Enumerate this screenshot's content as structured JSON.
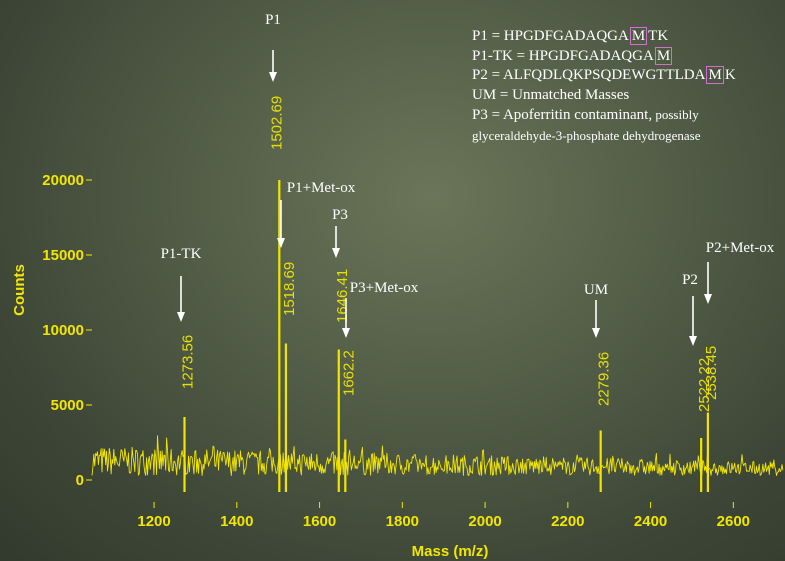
{
  "chart_data": {
    "type": "line",
    "xlabel": "Mass (m/z)",
    "ylabel": "Counts",
    "xlim": [
      1050,
      2720
    ],
    "ylim": [
      0,
      22000
    ],
    "xticks": [
      1200,
      1400,
      1600,
      1800,
      2000,
      2200,
      2400,
      2600
    ],
    "yticks": [
      0,
      5000,
      10000,
      15000,
      20000
    ],
    "baseline_level": 1500,
    "peaks": [
      {
        "x": 1273.56,
        "y": 4200,
        "value_label": "1273.56",
        "annotation": "P1-TK"
      },
      {
        "x": 1502.69,
        "y": 20000,
        "value_label": "1502.69",
        "annotation": "P1"
      },
      {
        "x": 1518.69,
        "y": 9100,
        "value_label": "1518.69",
        "annotation": "P1+Met-ox"
      },
      {
        "x": 1646.41,
        "y": 8700,
        "value_label": "1646.41",
        "annotation": "P3"
      },
      {
        "x": 1662.2,
        "y": 2700,
        "value_label": "1662.2",
        "annotation": "P3+Met-ox"
      },
      {
        "x": 2279.36,
        "y": 3300,
        "value_label": "2279.36",
        "annotation": "UM"
      },
      {
        "x": 2522.22,
        "y": 2800,
        "value_label": "2522.22",
        "annotation": "P2"
      },
      {
        "x": 2538.45,
        "y": 4500,
        "value_label": "2538.45",
        "annotation": "P2+Met-ox"
      }
    ],
    "colors": {
      "trace": "#f2e600",
      "annotation": "#ffffff",
      "highlight_box": "#d070d0"
    }
  },
  "legend": {
    "p1": {
      "pre": "P1 = HPGDFGADAQGA",
      "box": "M",
      "post": "TK"
    },
    "p1tk": {
      "pre": "P1-TK = HPGDFGADAQGA",
      "box": "M",
      "post": ""
    },
    "p2": {
      "pre": "P2 = ALFQDLQKPSQDEWGTTLDA",
      "box": "M",
      "post": "K"
    },
    "um": "UM = Unmatched Masses",
    "p3": {
      "main": "P3 = Apoferritin contaminant,",
      "small": " possibly"
    },
    "p3b": "glyceraldehyde-3-phosphate  dehydrogenase"
  }
}
